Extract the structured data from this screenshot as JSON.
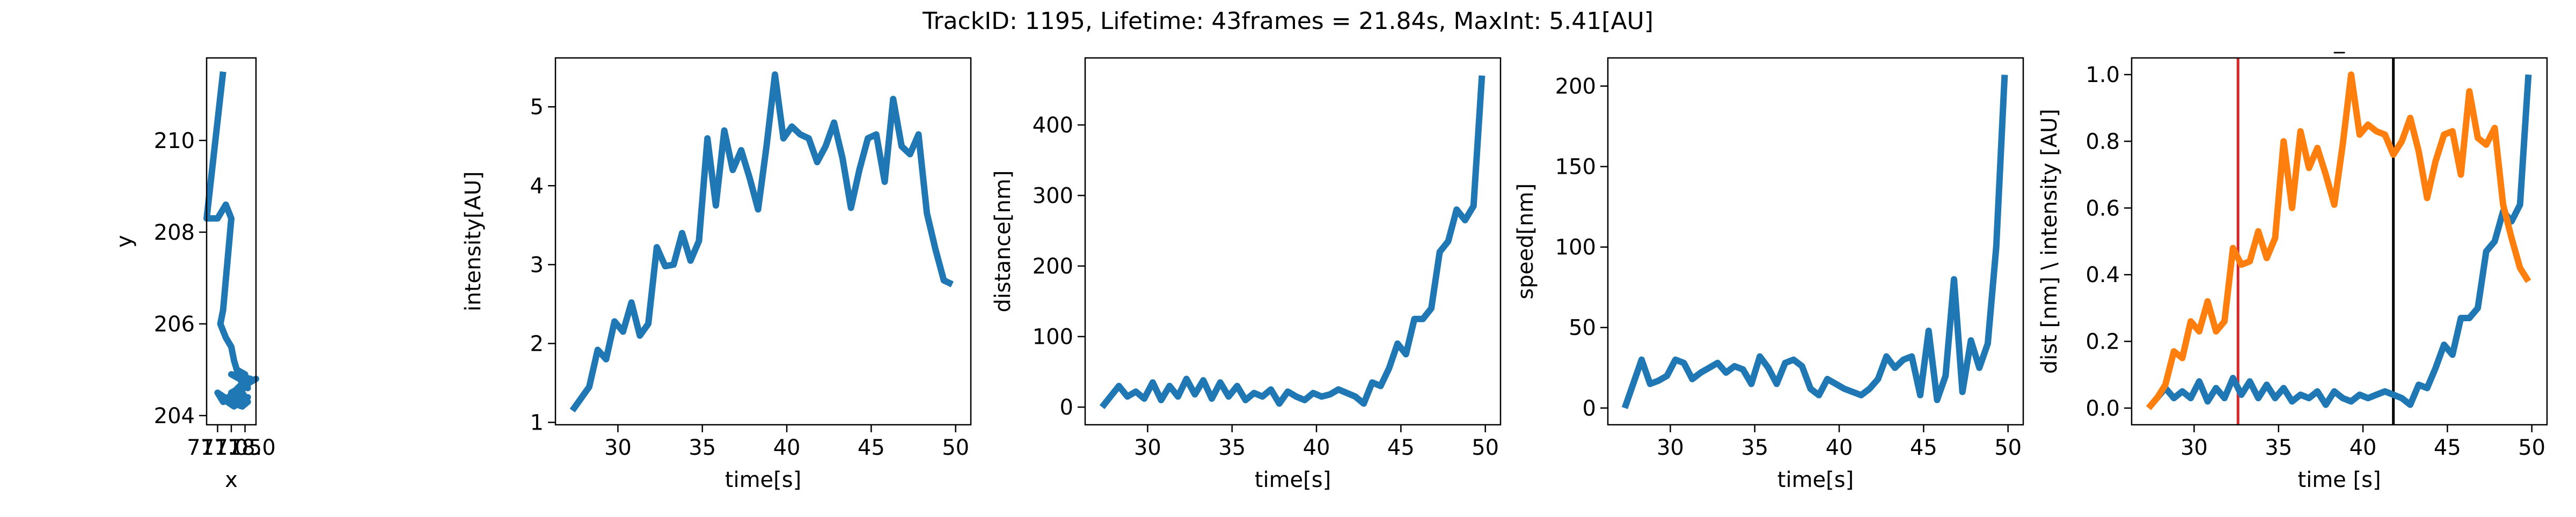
{
  "figure": {
    "suptitle": "TrackID: 1195, Lifetime: 43frames = 21.84s, MaxInt: 5.41[AU]"
  },
  "colors": {
    "blue": "#1f77b4",
    "orange": "#ff7f0e",
    "red": "#d62728",
    "black": "#000000"
  },
  "chart_data": [
    {
      "type": "line",
      "title": "",
      "xlabel": "x",
      "ylabel": "y",
      "xlim": [
        716.6,
        718.4
      ],
      "ylim": [
        203.8,
        211.8
      ],
      "x_ticks": [
        {
          "v": 717.0,
          "label": "717.0"
        },
        {
          "v": 717.5,
          "label": "717.5"
        },
        {
          "v": 718.0,
          "label": "718.0"
        }
      ],
      "y_ticks": [
        204,
        206,
        208,
        210
      ],
      "grid": false,
      "series": [
        {
          "x": [
            717.2,
            716.6,
            716.8,
            717.0,
            717.3,
            717.5,
            717.2,
            717.1,
            717.3,
            717.5,
            717.6,
            717.7,
            718.0,
            718.1,
            717.8,
            717.5,
            718.2,
            717.6,
            717.9,
            717.4,
            718.1,
            717.5,
            717.0,
            717.2,
            717.6,
            717.9,
            717.4,
            717.1,
            717.6,
            717.8,
            718.0,
            718.4,
            717.8,
            717.5,
            717.8,
            718.0,
            718.1,
            717.9,
            717.5,
            718.0
          ],
          "y": [
            211.5,
            208.3,
            208.3,
            208.3,
            208.6,
            208.3,
            206.3,
            206.0,
            205.7,
            205.5,
            205.2,
            205.0,
            204.9,
            204.6,
            204.8,
            204.9,
            204.8,
            204.5,
            204.7,
            204.4,
            204.4,
            204.3,
            204.5,
            204.3,
            204.4,
            204.2,
            204.3,
            204.4,
            204.2,
            204.4,
            204.7,
            204.8,
            204.6,
            204.5,
            204.6,
            204.4,
            204.3,
            204.2,
            204.3,
            204.2
          ]
        }
      ]
    },
    {
      "type": "line",
      "title": "",
      "xlabel": "time[s]",
      "ylabel": "intensity[AU]",
      "xlim": [
        26.3,
        50.9
      ],
      "ylim": [
        0.97,
        5.62
      ],
      "x_ticks": [
        30,
        35,
        40,
        45,
        50
      ],
      "y_ticks": [
        1,
        2,
        3,
        4,
        5
      ],
      "grid": false,
      "series": [
        {
          "x": [
            27.3,
            27.8,
            28.3,
            28.8,
            29.3,
            29.8,
            30.3,
            30.8,
            31.3,
            31.8,
            32.3,
            32.8,
            33.3,
            33.8,
            34.3,
            34.8,
            35.3,
            35.8,
            36.3,
            36.8,
            37.3,
            37.8,
            38.3,
            38.8,
            39.3,
            39.8,
            40.3,
            40.8,
            41.3,
            41.8,
            42.3,
            42.8,
            43.3,
            43.8,
            44.3,
            44.8,
            45.3,
            45.8,
            46.3,
            46.8,
            47.3,
            47.8,
            48.3,
            48.8,
            49.3,
            49.8
          ],
          "y": [
            1.15,
            1.3,
            1.45,
            1.92,
            1.8,
            2.28,
            2.15,
            2.52,
            2.1,
            2.25,
            3.22,
            2.98,
            3.0,
            3.4,
            3.05,
            3.3,
            4.6,
            3.75,
            4.7,
            4.2,
            4.45,
            4.1,
            3.7,
            4.5,
            5.41,
            4.6,
            4.75,
            4.65,
            4.6,
            4.3,
            4.5,
            4.8,
            4.35,
            3.72,
            4.2,
            4.6,
            4.65,
            4.05,
            5.1,
            4.5,
            4.4,
            4.65,
            3.65,
            3.2,
            2.8,
            2.75
          ]
        }
      ]
    },
    {
      "type": "line",
      "title": "",
      "xlabel": "time[s]",
      "ylabel": "distance[nm]",
      "xlim": [
        26.3,
        50.9
      ],
      "ylim": [
        -25,
        495
      ],
      "x_ticks": [
        30,
        35,
        40,
        45,
        50
      ],
      "y_ticks": [
        0,
        100,
        200,
        300,
        400
      ],
      "grid": false,
      "series": [
        {
          "x": [
            27.3,
            27.8,
            28.3,
            28.8,
            29.3,
            29.8,
            30.3,
            30.8,
            31.3,
            31.8,
            32.3,
            32.8,
            33.3,
            33.8,
            34.3,
            34.8,
            35.3,
            35.8,
            36.3,
            36.8,
            37.3,
            37.8,
            38.3,
            38.8,
            39.3,
            39.8,
            40.3,
            40.8,
            41.3,
            41.8,
            42.3,
            42.8,
            43.3,
            43.8,
            44.3,
            44.8,
            45.3,
            45.8,
            46.3,
            46.8,
            47.3,
            47.8,
            48.3,
            48.8,
            49.3,
            49.8
          ],
          "y": [
            0,
            15,
            30,
            15,
            22,
            12,
            35,
            10,
            30,
            15,
            40,
            18,
            38,
            12,
            35,
            15,
            30,
            10,
            20,
            15,
            25,
            5,
            22,
            15,
            10,
            20,
            15,
            18,
            25,
            20,
            15,
            5,
            35,
            30,
            55,
            90,
            75,
            125,
            125,
            140,
            220,
            235,
            280,
            265,
            285,
            470
          ]
        }
      ]
    },
    {
      "type": "line",
      "title": "",
      "xlabel": "time[s]",
      "ylabel": "speed[nm]",
      "xlim": [
        26.3,
        50.9
      ],
      "ylim": [
        -10.4,
        217.5
      ],
      "x_ticks": [
        30,
        35,
        40,
        45,
        50
      ],
      "y_ticks": [
        0,
        50,
        100,
        150,
        200
      ],
      "grid": false,
      "series": [
        {
          "x": [
            27.3,
            27.8,
            28.3,
            28.8,
            29.3,
            29.8,
            30.3,
            30.8,
            31.3,
            31.8,
            32.3,
            32.8,
            33.3,
            33.8,
            34.3,
            34.8,
            35.3,
            35.8,
            36.3,
            36.8,
            37.3,
            37.8,
            38.3,
            38.8,
            39.3,
            39.8,
            40.3,
            40.8,
            41.3,
            41.8,
            42.3,
            42.8,
            43.3,
            43.8,
            44.3,
            44.8,
            45.3,
            45.8,
            46.3,
            46.8,
            47.3,
            47.8,
            48.3,
            48.8,
            49.3,
            49.8
          ],
          "y": [
            0,
            15,
            30,
            15,
            17,
            20,
            30,
            28,
            18,
            22,
            25,
            28,
            22,
            26,
            24,
            15,
            32,
            25,
            15,
            28,
            30,
            26,
            12,
            8,
            18,
            15,
            12,
            10,
            8,
            12,
            18,
            32,
            25,
            30,
            32,
            8,
            48,
            5,
            20,
            80,
            10,
            42,
            25,
            40,
            100,
            207
          ]
        }
      ]
    },
    {
      "type": "line",
      "title": "_",
      "xlabel": "time [s]",
      "ylabel": "dist [nm] \\ intensity [AU]",
      "xlim": [
        26.3,
        50.9
      ],
      "ylim": [
        -0.05,
        1.05
      ],
      "x_ticks": [
        30,
        35,
        40,
        45,
        50
      ],
      "y_ticks": [
        {
          "v": 0.0,
          "label": "0.0"
        },
        {
          "v": 0.2,
          "label": "0.2"
        },
        {
          "v": 0.4,
          "label": "0.4"
        },
        {
          "v": 0.6,
          "label": "0.6"
        },
        {
          "v": 0.8,
          "label": "0.8"
        },
        {
          "v": 1.0,
          "label": "1.0"
        }
      ],
      "grid": false,
      "vlines": [
        {
          "x": 32.6,
          "color": "#d62728"
        },
        {
          "x": 41.8,
          "color": "#000000"
        }
      ],
      "series": [
        {
          "color": "#1f77b4",
          "x": [
            27.3,
            27.8,
            28.3,
            28.8,
            29.3,
            29.8,
            30.3,
            30.8,
            31.3,
            31.8,
            32.3,
            32.8,
            33.3,
            33.8,
            34.3,
            34.8,
            35.3,
            35.8,
            36.3,
            36.8,
            37.3,
            37.8,
            38.3,
            38.8,
            39.3,
            39.8,
            40.3,
            40.8,
            41.3,
            41.8,
            42.3,
            42.8,
            43.3,
            43.8,
            44.3,
            44.8,
            45.3,
            45.8,
            46.3,
            46.8,
            47.3,
            47.8,
            48.3,
            48.8,
            49.3,
            49.8
          ],
          "y": [
            0,
            0.03,
            0.06,
            0.03,
            0.05,
            0.03,
            0.08,
            0.02,
            0.06,
            0.03,
            0.09,
            0.04,
            0.08,
            0.03,
            0.07,
            0.03,
            0.06,
            0.02,
            0.04,
            0.03,
            0.05,
            0.01,
            0.05,
            0.03,
            0.02,
            0.04,
            0.03,
            0.04,
            0.05,
            0.04,
            0.03,
            0.01,
            0.07,
            0.06,
            0.12,
            0.19,
            0.16,
            0.27,
            0.27,
            0.3,
            0.47,
            0.5,
            0.59,
            0.56,
            0.61,
            1.0
          ]
        },
        {
          "color": "#ff7f0e",
          "x": [
            27.3,
            27.8,
            28.3,
            28.8,
            29.3,
            29.8,
            30.3,
            30.8,
            31.3,
            31.8,
            32.3,
            32.8,
            33.3,
            33.8,
            34.3,
            34.8,
            35.3,
            35.8,
            36.3,
            36.8,
            37.3,
            37.8,
            38.3,
            38.8,
            39.3,
            39.8,
            40.3,
            40.8,
            41.3,
            41.8,
            42.3,
            42.8,
            43.3,
            43.8,
            44.3,
            44.8,
            45.3,
            45.8,
            46.3,
            46.8,
            47.3,
            47.8,
            48.3,
            48.8,
            49.3,
            49.8
          ],
          "y": [
            0,
            0.03,
            0.07,
            0.17,
            0.15,
            0.26,
            0.23,
            0.32,
            0.23,
            0.26,
            0.48,
            0.43,
            0.44,
            0.53,
            0.45,
            0.51,
            0.8,
            0.6,
            0.83,
            0.72,
            0.78,
            0.7,
            0.61,
            0.79,
            1.0,
            0.82,
            0.85,
            0.83,
            0.82,
            0.76,
            0.8,
            0.87,
            0.77,
            0.63,
            0.74,
            0.82,
            0.83,
            0.7,
            0.95,
            0.81,
            0.79,
            0.84,
            0.61,
            0.51,
            0.42,
            0.38
          ]
        }
      ]
    }
  ]
}
